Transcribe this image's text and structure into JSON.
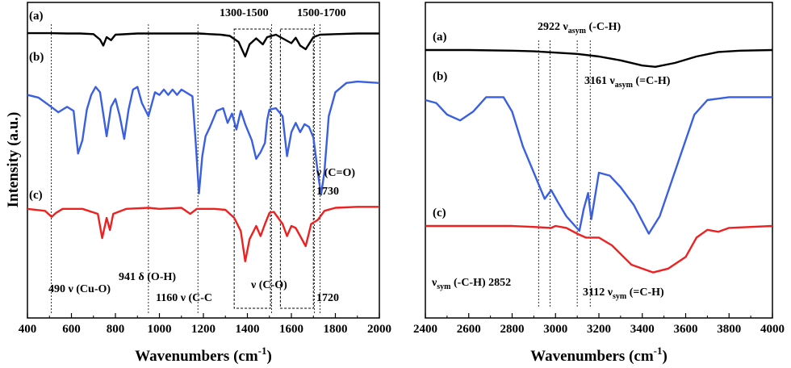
{
  "chart_data": [
    {
      "type": "line",
      "xlabel": "Wavenumbers (cm",
      "xlabel_sup": "-1",
      "xlabel_close": ")",
      "ylabel": "Intensity (a.u.)",
      "xlim": [
        400,
        2000
      ],
      "xticks": [
        400,
        600,
        800,
        1000,
        1200,
        1400,
        1600,
        1800,
        2000
      ],
      "series_labels": [
        "(a)",
        "(b)",
        "(c)"
      ],
      "colors": [
        "#000000",
        "#3a5fe0",
        "#ee2020"
      ],
      "region_labels": [
        "1300-1500",
        "1500-1700"
      ],
      "region_ranges": [
        [
          1340,
          1505
        ],
        [
          1550,
          1700
        ]
      ],
      "ref_lines": [
        508,
        950,
        1175,
        1510,
        1705,
        1730
      ],
      "annotations": {
        "cu_o": "490 ν (Cu-O)",
        "o_h": "941 δ (O-H)",
        "c_c": "1160 ν (C-C",
        "c_o_single": "ν (C-O)",
        "c_o_double": "ν (C=O)",
        "w1730": "1730",
        "w1720": "1720"
      },
      "series": [
        {
          "name": "(a)",
          "points": [
            [
              400,
              0.015
            ],
            [
              500,
              0.015
            ],
            [
              580,
              0.02
            ],
            [
              640,
              0.02
            ],
            [
              700,
              0.03
            ],
            [
              730,
              0.12
            ],
            [
              745,
              0.22
            ],
            [
              760,
              0.08
            ],
            [
              780,
              0.13
            ],
            [
              800,
              0.04
            ],
            [
              900,
              0.02
            ],
            [
              1000,
              0.02
            ],
            [
              1100,
              0.02
            ],
            [
              1180,
              0.02
            ],
            [
              1230,
              0.03
            ],
            [
              1280,
              0.04
            ],
            [
              1320,
              0.06
            ],
            [
              1360,
              0.16
            ],
            [
              1390,
              0.4
            ],
            [
              1410,
              0.2
            ],
            [
              1440,
              0.1
            ],
            [
              1470,
              0.2
            ],
            [
              1490,
              0.08
            ],
            [
              1530,
              0.04
            ],
            [
              1570,
              0.12
            ],
            [
              1600,
              0.18
            ],
            [
              1620,
              0.09
            ],
            [
              1640,
              0.22
            ],
            [
              1665,
              0.28
            ],
            [
              1700,
              0.08
            ],
            [
              1730,
              0.04
            ],
            [
              1800,
              0.03
            ],
            [
              1900,
              0.02
            ],
            [
              2000,
              0.02
            ]
          ]
        },
        {
          "name": "(b)",
          "points": [
            [
              400,
              0.24
            ],
            [
              450,
              0.26
            ],
            [
              500,
              0.32
            ],
            [
              540,
              0.37
            ],
            [
              580,
              0.33
            ],
            [
              610,
              0.36
            ],
            [
              630,
              0.68
            ],
            [
              650,
              0.58
            ],
            [
              670,
              0.35
            ],
            [
              690,
              0.24
            ],
            [
              710,
              0.18
            ],
            [
              730,
              0.22
            ],
            [
              760,
              0.55
            ],
            [
              780,
              0.33
            ],
            [
              800,
              0.27
            ],
            [
              820,
              0.4
            ],
            [
              840,
              0.57
            ],
            [
              860,
              0.35
            ],
            [
              880,
              0.2
            ],
            [
              900,
              0.18
            ],
            [
              920,
              0.3
            ],
            [
              950,
              0.4
            ],
            [
              980,
              0.22
            ],
            [
              1000,
              0.24
            ],
            [
              1020,
              0.2
            ],
            [
              1040,
              0.24
            ],
            [
              1060,
              0.2
            ],
            [
              1080,
              0.24
            ],
            [
              1100,
              0.2
            ],
            [
              1150,
              0.25
            ],
            [
              1165,
              0.6
            ],
            [
              1180,
              0.98
            ],
            [
              1195,
              0.7
            ],
            [
              1210,
              0.55
            ],
            [
              1230,
              0.48
            ],
            [
              1260,
              0.36
            ],
            [
              1290,
              0.34
            ],
            [
              1310,
              0.45
            ],
            [
              1330,
              0.38
            ],
            [
              1350,
              0.5
            ],
            [
              1370,
              0.36
            ],
            [
              1390,
              0.46
            ],
            [
              1420,
              0.58
            ],
            [
              1440,
              0.72
            ],
            [
              1460,
              0.67
            ],
            [
              1480,
              0.6
            ],
            [
              1490,
              0.43
            ],
            [
              1500,
              0.35
            ],
            [
              1530,
              0.34
            ],
            [
              1560,
              0.4
            ],
            [
              1580,
              0.7
            ],
            [
              1600,
              0.52
            ],
            [
              1620,
              0.45
            ],
            [
              1640,
              0.52
            ],
            [
              1660,
              0.46
            ],
            [
              1680,
              0.48
            ],
            [
              1700,
              0.56
            ],
            [
              1720,
              0.82
            ],
            [
              1735,
              0.99
            ],
            [
              1750,
              0.82
            ],
            [
              1770,
              0.4
            ],
            [
              1800,
              0.22
            ],
            [
              1850,
              0.15
            ],
            [
              1900,
              0.14
            ],
            [
              2000,
              0.15
            ]
          ]
        },
        {
          "name": "(c)",
          "points": [
            [
              400,
              0.03
            ],
            [
              480,
              0.05
            ],
            [
              510,
              0.11
            ],
            [
              530,
              0.07
            ],
            [
              560,
              0.03
            ],
            [
              650,
              0.03
            ],
            [
              720,
              0.08
            ],
            [
              740,
              0.32
            ],
            [
              760,
              0.12
            ],
            [
              775,
              0.24
            ],
            [
              790,
              0.08
            ],
            [
              850,
              0.03
            ],
            [
              950,
              0.02
            ],
            [
              1000,
              0.03
            ],
            [
              1100,
              0.02
            ],
            [
              1140,
              0.08
            ],
            [
              1170,
              0.03
            ],
            [
              1250,
              0.03
            ],
            [
              1300,
              0.04
            ],
            [
              1340,
              0.12
            ],
            [
              1370,
              0.25
            ],
            [
              1390,
              0.55
            ],
            [
              1410,
              0.33
            ],
            [
              1440,
              0.2
            ],
            [
              1460,
              0.3
            ],
            [
              1480,
              0.18
            ],
            [
              1500,
              0.07
            ],
            [
              1520,
              0.06
            ],
            [
              1560,
              0.18
            ],
            [
              1580,
              0.3
            ],
            [
              1600,
              0.2
            ],
            [
              1620,
              0.22
            ],
            [
              1640,
              0.3
            ],
            [
              1665,
              0.4
            ],
            [
              1690,
              0.18
            ],
            [
              1720,
              0.14
            ],
            [
              1750,
              0.05
            ],
            [
              1800,
              0.02
            ],
            [
              1900,
              0.01
            ],
            [
              2000,
              0.01
            ]
          ]
        }
      ]
    },
    {
      "type": "line",
      "xlabel": "Wavenumbers (cm",
      "xlabel_sup": "-1",
      "xlabel_close": ")",
      "xlim": [
        2400,
        4000
      ],
      "xticks": [
        2400,
        2600,
        2800,
        3000,
        3200,
        3400,
        3600,
        3800,
        4000
      ],
      "series_labels": [
        "(a)",
        "(b)",
        "(c)"
      ],
      "colors": [
        "#000000",
        "#3a5fe0",
        "#ee2020"
      ],
      "ref_lines": [
        2922,
        2975,
        3100,
        3160
      ],
      "annotations": {
        "asym_ch": {
          "pre": "2922 ν",
          "sub": "asym",
          "post": " (-C-H)"
        },
        "asym_eq": {
          "pre": "3161 ν",
          "sub": "asym",
          "post": " (=C-H)"
        },
        "sym_ch": {
          "pre": "ν",
          "sub": "sym",
          "post": " (-C-H) 2852"
        },
        "sym_eq": {
          "pre": "3112 ν",
          "sub": "sym",
          "post": " (=C-H)"
        }
      },
      "series": [
        {
          "name": "(a)",
          "points": [
            [
              2400,
              0.0
            ],
            [
              2600,
              0.0
            ],
            [
              2800,
              0.01
            ],
            [
              2900,
              0.02
            ],
            [
              3000,
              0.04
            ],
            [
              3100,
              0.06
            ],
            [
              3200,
              0.1
            ],
            [
              3300,
              0.16
            ],
            [
              3400,
              0.24
            ],
            [
              3460,
              0.26
            ],
            [
              3550,
              0.2
            ],
            [
              3650,
              0.1
            ],
            [
              3750,
              0.03
            ],
            [
              3850,
              0.01
            ],
            [
              4000,
              0.0
            ]
          ]
        },
        {
          "name": "(b)",
          "points": [
            [
              2400,
              0.1
            ],
            [
              2450,
              0.12
            ],
            [
              2500,
              0.2
            ],
            [
              2560,
              0.24
            ],
            [
              2620,
              0.18
            ],
            [
              2680,
              0.08
            ],
            [
              2760,
              0.08
            ],
            [
              2800,
              0.18
            ],
            [
              2850,
              0.42
            ],
            [
              2900,
              0.6
            ],
            [
              2950,
              0.78
            ],
            [
              2980,
              0.72
            ],
            [
              3010,
              0.8
            ],
            [
              3050,
              0.9
            ],
            [
              3110,
              1.0
            ],
            [
              3130,
              0.85
            ],
            [
              3150,
              0.74
            ],
            [
              3165,
              0.92
            ],
            [
              3200,
              0.6
            ],
            [
              3250,
              0.62
            ],
            [
              3300,
              0.7
            ],
            [
              3360,
              0.82
            ],
            [
              3430,
              1.02
            ],
            [
              3480,
              0.9
            ],
            [
              3560,
              0.55
            ],
            [
              3640,
              0.2
            ],
            [
              3700,
              0.1
            ],
            [
              3800,
              0.08
            ],
            [
              3900,
              0.08
            ],
            [
              4000,
              0.08
            ]
          ]
        },
        {
          "name": "(c)",
          "points": [
            [
              2400,
              0.0
            ],
            [
              2600,
              0.0
            ],
            [
              2800,
              0.0
            ],
            [
              2900,
              0.01
            ],
            [
              2980,
              0.02
            ],
            [
              3000,
              0.0
            ],
            [
              3050,
              0.02
            ],
            [
              3100,
              0.08
            ],
            [
              3140,
              0.12
            ],
            [
              3200,
              0.12
            ],
            [
              3260,
              0.2
            ],
            [
              3350,
              0.4
            ],
            [
              3450,
              0.48
            ],
            [
              3520,
              0.44
            ],
            [
              3600,
              0.32
            ],
            [
              3650,
              0.12
            ],
            [
              3700,
              0.04
            ],
            [
              3750,
              0.06
            ],
            [
              3800,
              0.02
            ],
            [
              3900,
              0.01
            ],
            [
              4000,
              0.0
            ]
          ]
        }
      ]
    }
  ]
}
